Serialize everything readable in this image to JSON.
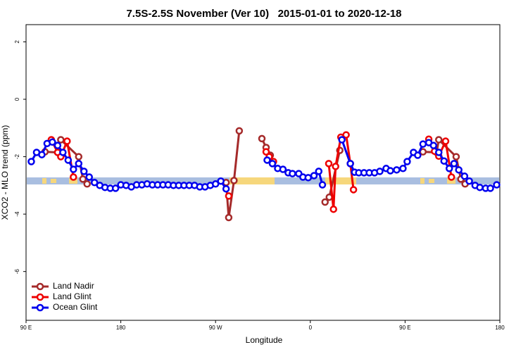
{
  "chart_data": {
    "type": "line",
    "title": "7.5S-2.5S November (Ver 10)   2015-01-01 to 2020-12-18",
    "xlabel": "Longitude",
    "ylabel": "XCO2 - MLO trend (ppm)",
    "xlim": [
      90,
      540
    ],
    "ylim": [
      -7.7,
      2.6
    ],
    "xticks": [
      {
        "value": 90,
        "label": "90 E"
      },
      {
        "value": 180,
        "label": "180"
      },
      {
        "value": 270,
        "label": "90 W"
      },
      {
        "value": 360,
        "label": "0"
      },
      {
        "value": 450,
        "label": "90 E"
      },
      {
        "value": 540,
        "label": "180"
      }
    ],
    "yticks": [
      -6,
      -4,
      -2,
      0,
      2
    ],
    "legend": "bottom-left",
    "series": [
      {
        "name": "Land Nadir",
        "color": "#a52a2a",
        "x": [
          108,
          120,
          123,
          140,
          144,
          148,
          null,
          280,
          282.5,
          287.5,
          292.5,
          null,
          314,
          318,
          322,
          null,
          374,
          378,
          388,
          null,
          467,
          480,
          482,
          498.5,
          503,
          507
        ],
        "values": [
          -1.83,
          -1.85,
          -1.41,
          -2.0,
          -2.78,
          -2.95,
          null,
          -2.9,
          -4.12,
          -2.83,
          -1.1,
          null,
          -1.37,
          -1.68,
          -1.95,
          null,
          -3.58,
          -3.41,
          -1.78,
          null,
          -1.83,
          -1.85,
          -1.41,
          -2.0,
          -2.78,
          -2.95
        ]
      },
      {
        "name": "Land Glint",
        "color": "#ee0000",
        "x": [
          114,
          120,
          123,
          129,
          135,
          null,
          282.5,
          null,
          318,
          321,
          325,
          null,
          377.5,
          382,
          384,
          389,
          394,
          398,
          401,
          null,
          472.5,
          478,
          482,
          488.5,
          494
        ],
        "values": [
          -1.41,
          -1.85,
          -2.0,
          -1.46,
          -2.71,
          null,
          -3.37,
          null,
          -1.83,
          -2.0,
          -2.17,
          null,
          -2.24,
          -3.83,
          -2.34,
          -1.32,
          -1.24,
          -2.24,
          -3.15,
          null,
          -1.39,
          -1.81,
          -1.98,
          -1.46,
          -2.71
        ]
      },
      {
        "name": "Ocean Glint",
        "color": "#0000ee",
        "x": [
          95,
          100,
          105,
          110,
          115,
          120,
          125,
          130,
          135,
          140,
          145,
          150,
          155,
          160,
          165,
          170,
          175,
          180,
          185,
          190,
          195,
          200,
          205,
          210,
          215,
          220,
          225,
          230,
          235,
          240,
          245,
          250,
          255,
          260,
          265,
          270,
          275,
          280,
          null,
          319,
          324,
          329,
          334,
          339,
          343,
          349,
          353,
          358,
          363.5,
          368,
          371.5,
          null,
          390,
          398,
          402,
          406,
          411,
          416,
          421,
          426,
          432,
          436,
          442,
          448,
          452,
          458,
          462,
          467,
          472.5,
          477,
          482,
          487,
          492,
          496.5,
          501,
          506.5,
          511,
          516.5,
          521,
          526.5,
          531,
          537
        ],
        "values": [
          -2.17,
          -1.85,
          -1.93,
          -1.54,
          -1.49,
          -1.61,
          -1.85,
          -2.12,
          -2.44,
          -2.24,
          -2.51,
          -2.71,
          -2.9,
          -3.0,
          -3.07,
          -3.1,
          -3.1,
          -2.98,
          -3.0,
          -3.05,
          -2.98,
          -2.98,
          -2.95,
          -2.98,
          -2.98,
          -2.98,
          -2.98,
          -3.0,
          -3.0,
          -3.0,
          -3.0,
          -3.0,
          -3.05,
          -3.05,
          -3.0,
          -2.95,
          -2.85,
          -3.12,
          null,
          -2.12,
          -2.24,
          -2.41,
          -2.44,
          -2.56,
          -2.59,
          -2.59,
          -2.71,
          -2.73,
          -2.66,
          -2.51,
          -2.98,
          null,
          -1.41,
          -2.24,
          -2.54,
          -2.56,
          -2.56,
          -2.56,
          -2.56,
          -2.51,
          -2.41,
          -2.49,
          -2.46,
          -2.41,
          -2.17,
          -1.85,
          -1.95,
          -1.56,
          -1.51,
          -1.61,
          -1.85,
          -2.15,
          -2.41,
          -2.24,
          -2.46,
          -2.68,
          -2.85,
          -3.0,
          -3.07,
          -3.1,
          -3.1,
          -2.98
        ]
      }
    ]
  }
}
